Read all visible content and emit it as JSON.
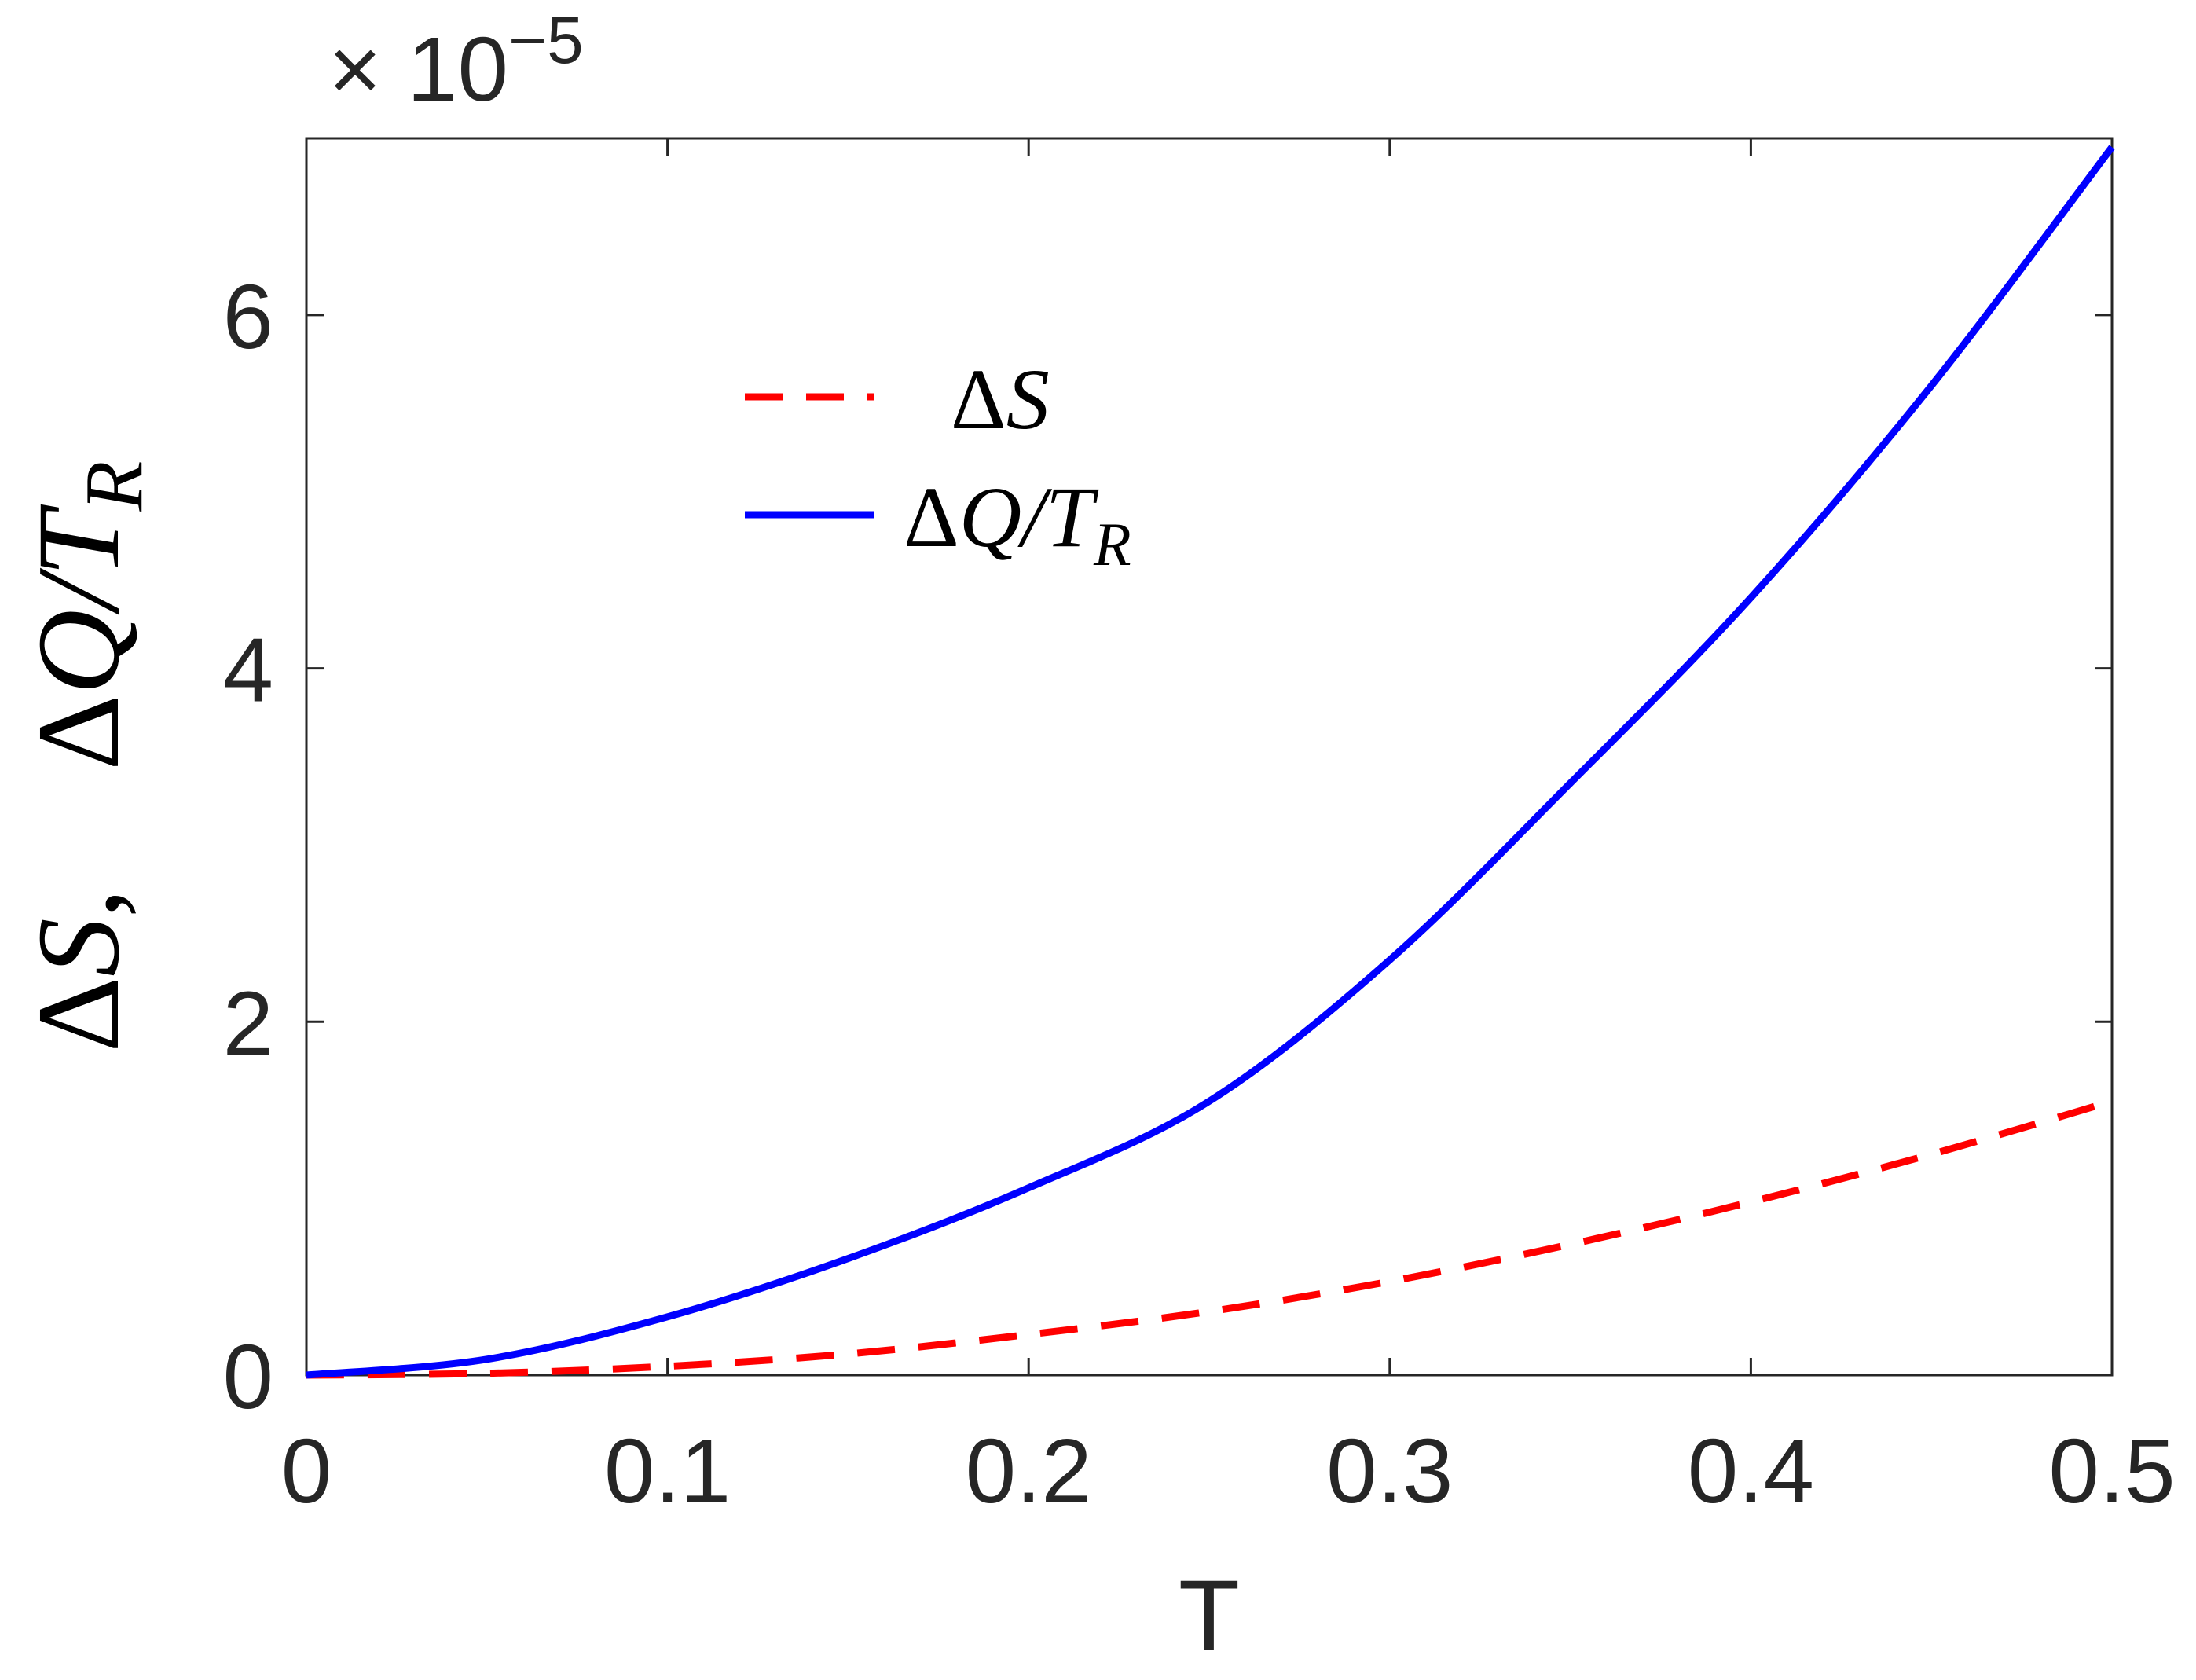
{
  "chart_data": {
    "type": "line",
    "xlabel": "T",
    "ylabel": "ΔS,  ΔQ/T_R",
    "ylabel_parts": {
      "delta1": "Δ",
      "var1": "S",
      "sep": ",",
      "delta2": "Δ",
      "var2": "Q/T",
      "sub": "R"
    },
    "y_exponent": {
      "prefix": "× 10",
      "power": "−5"
    },
    "xlim": [
      0,
      0.5
    ],
    "ylim": [
      0,
      7
    ],
    "x_ticks": [
      0,
      0.1,
      0.2,
      0.3,
      0.4,
      0.5
    ],
    "x_tick_labels": [
      "0",
      "0.1",
      "0.2",
      "0.3",
      "0.4",
      "0.5"
    ],
    "y_ticks": [
      0,
      2,
      4,
      6
    ],
    "y_tick_labels": [
      "0",
      "2",
      "4",
      "6"
    ],
    "grid": false,
    "legend_position": "upper-middle",
    "series": [
      {
        "name": "ΔS",
        "legend": {
          "delta": "Δ",
          "var": "S",
          "sub": ""
        },
        "color": "#ff0000",
        "style": "dashed",
        "x": [
          0,
          0.05,
          0.1,
          0.15,
          0.2,
          0.25,
          0.3,
          0.35,
          0.4,
          0.45,
          0.5
        ],
        "y": [
          0,
          0.01,
          0.05,
          0.12,
          0.23,
          0.36,
          0.53,
          0.74,
          0.98,
          1.25,
          1.55
        ]
      },
      {
        "name": "ΔQ/T_R",
        "legend": {
          "delta": "Δ",
          "var": "Q/T",
          "sub": "R"
        },
        "color": "#0000ff",
        "style": "solid",
        "x": [
          0,
          0.05,
          0.1,
          0.15,
          0.2,
          0.25,
          0.3,
          0.35,
          0.4,
          0.45,
          0.5
        ],
        "y": [
          0,
          0.09,
          0.33,
          0.66,
          1.06,
          1.55,
          2.35,
          3.35,
          4.4,
          5.6,
          6.95
        ]
      }
    ]
  }
}
